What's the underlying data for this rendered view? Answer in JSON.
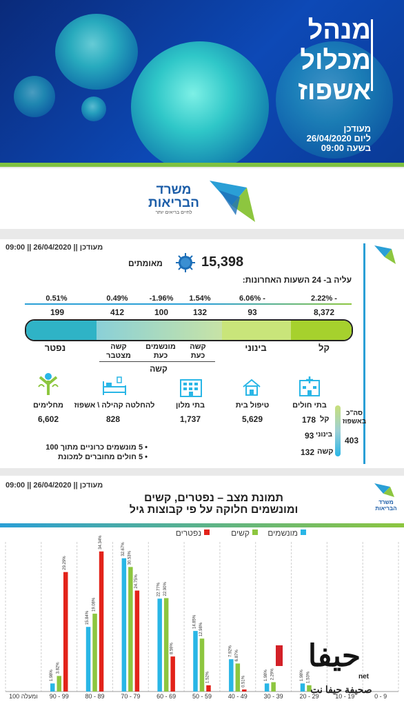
{
  "banner": {
    "title_lines": [
      "מנהל",
      "מכלול",
      "אשפוז"
    ],
    "date_lines": [
      "מעודכן",
      "ליום 26/04/2020",
      "בשעה 09:00"
    ]
  },
  "logo": {
    "name_line1": "משרד",
    "name_line2": "הבריאות",
    "slogan": "לחיים בריאים יותר"
  },
  "stats": {
    "header": "מעודכן || 26/04/2020 || 09:00",
    "confirmed_value": "15,398",
    "confirmed_label": "מאומתים",
    "increase_title": "עליה ב- 24 השעות האחרונות:",
    "percentages": [
      "2.22% -",
      "6.06% -",
      "1.54%",
      "-1.96%",
      "0.49%",
      "0.51%"
    ],
    "values": [
      "8,372",
      "93",
      "132",
      "100",
      "412",
      "199"
    ],
    "categories": {
      "light": "קל",
      "moderate": "בינוני",
      "severe_now_1": "קשה",
      "severe_now_2": "כעת",
      "vent_now_1": "מונשמים",
      "vent_now_2": "כעת",
      "severe_cum_1": "קשה",
      "severe_cum_2": "מצטבר",
      "dead": "נפטר",
      "severe_group": "קשה"
    },
    "facilities": [
      {
        "label": "בתי חולים",
        "icon": "hospital-icon"
      },
      {
        "label": "טיפול בית",
        "value": "5,629",
        "icon": "home-icon"
      },
      {
        "label": "בתי מלון",
        "value": "1,737",
        "icon": "hotel-icon"
      },
      {
        "label": "להחלטה קהילה \\ אשפוז",
        "value": "828",
        "icon": "hospital-bed-icon"
      },
      {
        "label": "מחלימים",
        "value": "6,602",
        "icon": "recovered-person-icon"
      }
    ],
    "hospital_breakdown": {
      "title_1": "סה\"כ",
      "title_2": "באשפוז",
      "total": "403",
      "light_label": "קל",
      "light_value": "178",
      "moderate_label": "בינוני",
      "moderate_value": "93",
      "severe_label": "קשה",
      "severe_value": "132"
    },
    "bullets": [
      "5 מונשמים כרוניים מתוך 100",
      "5 חולים מחוברים למכונת"
    ]
  },
  "chart_section": {
    "header": "מעודכן || 26/04/2020 || 09:00",
    "title_line1": "תמונת מצב – נפטרים, קשים",
    "title_line2": "ומונשמים חלוקה על פי קבוצות גיל",
    "logo_line1": "משרד",
    "logo_line2": "הבריאות"
  },
  "chart_data": {
    "type": "bar",
    "title": "תמונת מצב – נפטרים, קשים ומונשמים חלוקה על פי קבוצות גיל",
    "categories": [
      "100 ומעלה",
      "90 - 99",
      "80 - 89",
      "70 - 79",
      "60 - 69",
      "50 - 59",
      "40 - 49",
      "30 - 39",
      "20 - 29",
      "10 - 19",
      "0 - 9"
    ],
    "series": [
      {
        "name": "מונשמים",
        "color": "#29b6e6",
        "values": [
          null,
          1.98,
          15.84,
          32.67,
          22.77,
          14.85,
          7.92,
          1.98,
          1.98,
          null,
          null
        ]
      },
      {
        "name": "קשים",
        "color": "#8dc63f",
        "values": [
          null,
          3.82,
          19.08,
          30.53,
          22.9,
          12.98,
          6.87,
          2.29,
          1.53,
          null,
          null
        ]
      },
      {
        "name": "נפטרים",
        "color": "#e2231a",
        "values": [
          null,
          29.29,
          34.34,
          24.75,
          8.59,
          1.52,
          0.51,
          null,
          null,
          null,
          null
        ]
      }
    ],
    "value_labels": {
      "90 - 99": [
        "1.98%",
        "3.82%",
        "29.29%"
      ],
      "80 - 89": [
        "15.84%",
        "19.08%",
        "34.34%"
      ],
      "70 - 79": [
        "32.67%",
        "30.53%",
        "24.75%"
      ],
      "60 - 69": [
        "22.77%",
        "22.90%",
        "8.59%"
      ],
      "50 - 59": [
        "14.85%",
        "12.98%",
        "1.52%"
      ],
      "40 - 49": [
        "7.92%",
        "6.87%",
        "0.51%"
      ],
      "30 - 39": [
        "1.98%",
        "2.29%",
        ""
      ],
      "20 - 29": [
        "1.98%",
        "1.53%",
        ""
      ]
    },
    "ylim": [
      0,
      36
    ],
    "legend": "top-right",
    "grid": true
  },
  "watermark": {
    "brand": "حيفا",
    "tld": "net",
    "tagline": "صحيفة حيفا نت"
  }
}
